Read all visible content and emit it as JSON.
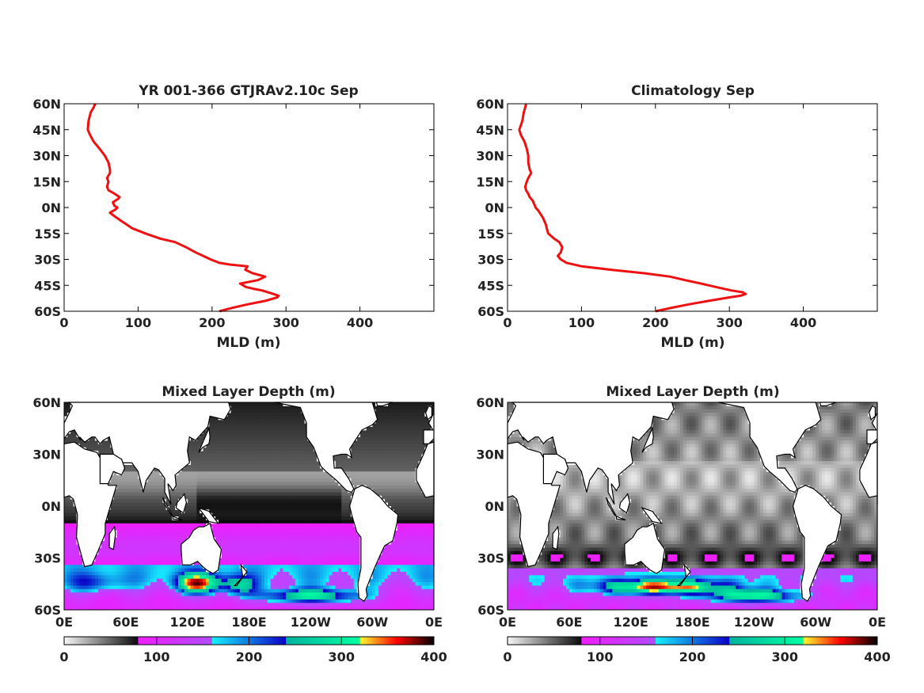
{
  "chart_data": [
    {
      "type": "line",
      "title": "YR 001-366 GTJRAv2.10c Sep",
      "xlabel": "MLD (m)",
      "ylabel": "",
      "xlim": [
        0,
        500
      ],
      "ylim": [
        -60,
        60
      ],
      "x_ticks": [
        "0",
        "100",
        "200",
        "300",
        "400"
      ],
      "y_ticks": [
        "60N",
        "45N",
        "30N",
        "15N",
        "0N",
        "15S",
        "30S",
        "45S",
        "60S"
      ],
      "line_color": "#ee1111",
      "series": [
        {
          "lat": [
            60,
            58,
            55,
            50,
            45,
            42,
            38,
            34,
            30,
            26,
            22,
            20,
            17,
            15,
            12,
            10,
            8,
            6,
            5,
            3,
            1,
            0,
            -1,
            -3,
            -5,
            -8,
            -10,
            -12,
            -15,
            -18,
            -20,
            -23,
            -26,
            -28,
            -30,
            -32,
            -33,
            -34,
            -36,
            -38,
            -40,
            -42,
            -44,
            -46,
            -47,
            -48,
            -50,
            -51,
            -52,
            -54,
            -56,
            -58,
            -60
          ],
          "mld": [
            42,
            40,
            36,
            33,
            32,
            35,
            40,
            48,
            55,
            60,
            62,
            62,
            58,
            60,
            58,
            60,
            68,
            75,
            73,
            66,
            68,
            72,
            70,
            62,
            68,
            78,
            85,
            92,
            110,
            130,
            150,
            165,
            178,
            188,
            198,
            210,
            225,
            248,
            245,
            255,
            272,
            262,
            238,
            246,
            256,
            268,
            283,
            290,
            288,
            272,
            248,
            228,
            210
          ]
        }
      ]
    },
    {
      "type": "line",
      "title": "Climatology Sep",
      "xlabel": "MLD (m)",
      "ylabel": "",
      "xlim": [
        0,
        500
      ],
      "ylim": [
        -60,
        60
      ],
      "x_ticks": [
        "0",
        "100",
        "200",
        "300",
        "400"
      ],
      "y_ticks": [
        "60N",
        "45N",
        "30N",
        "15N",
        "0N",
        "15S",
        "30S",
        "45S",
        "60S"
      ],
      "line_color": "#ee1111",
      "series": [
        {
          "lat": [
            60,
            58,
            55,
            50,
            45,
            42,
            38,
            34,
            30,
            26,
            22,
            20,
            17,
            15,
            12,
            10,
            8,
            6,
            4,
            2,
            0,
            -2,
            -4,
            -6,
            -8,
            -10,
            -12,
            -15,
            -18,
            -20,
            -23,
            -26,
            -28,
            -30,
            -32,
            -34,
            -36,
            -38,
            -40,
            -42,
            -44,
            -46,
            -48,
            -49,
            -50,
            -51,
            -52,
            -54,
            -56,
            -58,
            -60
          ],
          "mld": [
            25,
            24,
            22,
            20,
            16,
            18,
            23,
            26,
            28,
            28,
            30,
            32,
            28,
            26,
            24,
            25,
            28,
            30,
            34,
            36,
            38,
            42,
            45,
            48,
            50,
            52,
            53,
            55,
            63,
            70,
            74,
            72,
            68,
            72,
            80,
            100,
            140,
            185,
            220,
            240,
            262,
            282,
            303,
            318,
            322,
            315,
            300,
            272,
            245,
            222,
            200
          ]
        }
      ]
    },
    {
      "type": "heatmap",
      "title": "Mixed Layer Depth (m)",
      "x_ticks": [
        "0E",
        "60E",
        "120E",
        "180E",
        "120W",
        "60W",
        "0E"
      ],
      "y_ticks": [
        "60N",
        "30N",
        "0N",
        "30S",
        "60S"
      ],
      "xlim": [
        0,
        360
      ],
      "ylim": [
        -60,
        60
      ],
      "colorbar": {
        "ticks": [
          "0",
          "100",
          "200",
          "300",
          "400"
        ],
        "range": [
          0,
          400
        ],
        "segments": [
          [
            "#f6f6f6",
            "#0a0a0a"
          ],
          [
            "#f01dff",
            "#b14cff"
          ],
          [
            "#16f0ff",
            "#0a00c8"
          ],
          [
            "#00b3a0",
            "#00ffa0"
          ],
          [
            "#ffff30",
            "#ff0000",
            "#000000"
          ]
        ]
      },
      "regime": "model"
    },
    {
      "type": "heatmap",
      "title": "Mixed Layer Depth (m)",
      "x_ticks": [
        "0E",
        "60E",
        "120E",
        "180E",
        "120W",
        "60W",
        "0E"
      ],
      "y_ticks": [
        "60N",
        "30N",
        "0N",
        "30S",
        "60S"
      ],
      "xlim": [
        0,
        360
      ],
      "ylim": [
        -60,
        60
      ],
      "colorbar": {
        "ticks": [
          "0",
          "100",
          "200",
          "300",
          "400"
        ],
        "range": [
          0,
          400
        ],
        "segments": [
          [
            "#f6f6f6",
            "#0a0a0a"
          ],
          [
            "#f01dff",
            "#b14cff"
          ],
          [
            "#16f0ff",
            "#0a00c8"
          ],
          [
            "#00b3a0",
            "#00ffa0"
          ],
          [
            "#ffff30",
            "#ff0000",
            "#000000"
          ]
        ]
      },
      "regime": "climatology"
    }
  ]
}
